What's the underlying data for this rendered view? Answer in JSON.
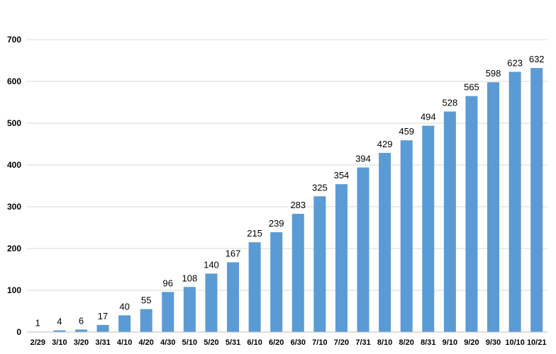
{
  "chart_data": {
    "type": "bar",
    "title": "",
    "xlabel": "",
    "ylabel": "",
    "ylim": [
      0,
      700
    ],
    "yticks": [
      0,
      100,
      200,
      300,
      400,
      500,
      600,
      700
    ],
    "grid": true,
    "legend": "none",
    "categories": [
      "2/29",
      "3/10",
      "3/20",
      "3/31",
      "4/10",
      "4/20",
      "4/30",
      "5/10",
      "5/20",
      "5/31",
      "6/10",
      "6/20",
      "6/30",
      "7/10",
      "7/20",
      "7/31",
      "8/10",
      "8/20",
      "8/31",
      "9/10",
      "9/20",
      "9/30",
      "10/10",
      "10/21"
    ],
    "values": [
      1,
      4,
      6,
      17,
      40,
      55,
      96,
      108,
      140,
      167,
      215,
      239,
      283,
      325,
      354,
      394,
      429,
      459,
      494,
      528,
      565,
      598,
      623,
      632
    ],
    "bar_color": "#5b9bd5",
    "label_color": "#000000",
    "highlight_last_label_color": "#c00000"
  }
}
